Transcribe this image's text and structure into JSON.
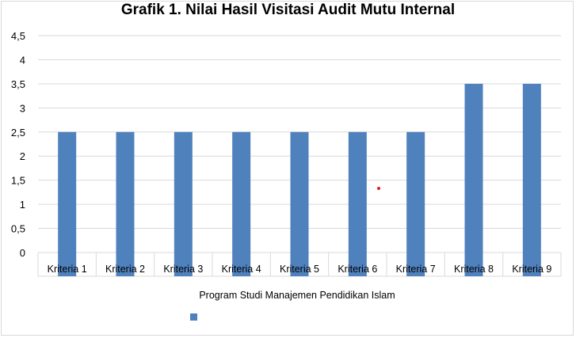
{
  "chart_data": {
    "type": "bar",
    "title": "Grafik 1. Nilai Hasil Visitasi Audit Mutu Internal",
    "categories": [
      "Kriteria 1",
      "Kriteria 2",
      "Kriteria 3",
      "Kriteria 4",
      "Kriteria 5",
      "Kriteria 6",
      "Kriteria 7",
      "Kriteria 8",
      "Kriteria 9"
    ],
    "series": [
      {
        "name": "Program Studi Manajemen Pendidikan Islam",
        "values": [
          2.5,
          2.5,
          2.5,
          2.5,
          2.5,
          2.5,
          2.5,
          3.5,
          3.5
        ]
      }
    ],
    "ylim": [
      0,
      4.5
    ],
    "yticks": [
      "0",
      "0,5",
      "1",
      "1,5",
      "2",
      "2,5",
      "3",
      "3,5",
      "4",
      "4,5"
    ],
    "xlabel": "",
    "ylabel": "",
    "grid": true,
    "legend_position": "bottom",
    "colors": {
      "bar": "#4f81bd",
      "grid": "#d9d9d9",
      "marker": "#e02020"
    }
  }
}
